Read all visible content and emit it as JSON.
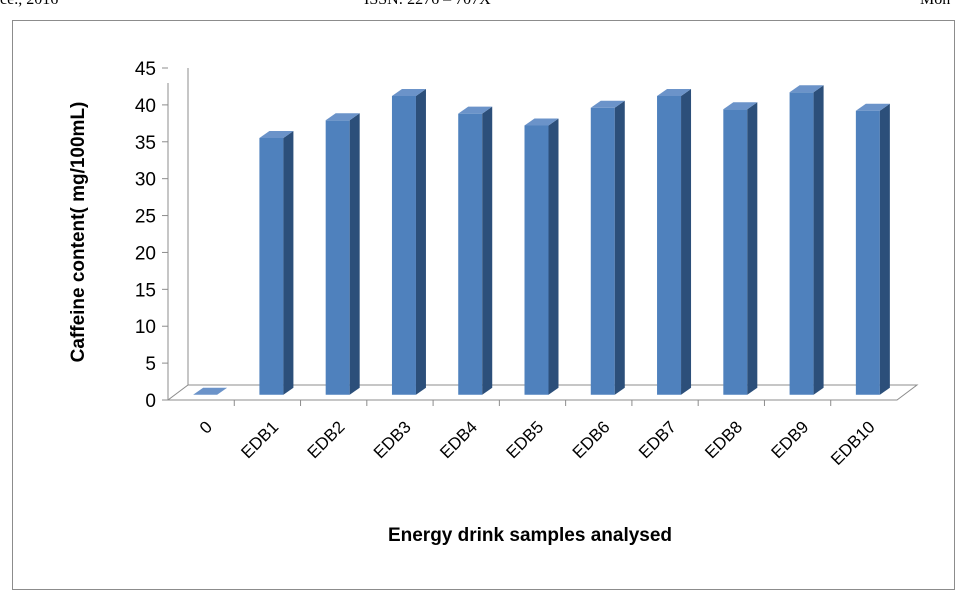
{
  "page_header": {
    "left": "ce., 2016",
    "center": "ISSN: 2276 – 707X",
    "right": "Moh"
  },
  "chart_data": {
    "type": "bar",
    "title": "",
    "xlabel": "Energy drink samples analysed",
    "ylabel": "Caffeine content( mg/100mL)",
    "categories": [
      "0",
      "EDB1",
      "EDB2",
      "EDB3",
      "EDB4",
      "EDB5",
      "EDB6",
      "EDB7",
      "EDB8",
      "EDB9",
      "EDB10"
    ],
    "values": [
      0,
      34.8,
      37.2,
      40.5,
      38.1,
      36.5,
      38.9,
      40.5,
      38.7,
      41.0,
      38.5
    ],
    "ylim": [
      0,
      45
    ],
    "yticks": [
      0,
      5,
      10,
      15,
      20,
      25,
      30,
      35,
      40,
      45
    ],
    "grid": false,
    "legend": "none",
    "style": "3d-column",
    "colors": {
      "front": "#4f81bd",
      "side": "#2c4f7a",
      "top": "#6b93c9",
      "axis": "#8c8c8c"
    }
  }
}
